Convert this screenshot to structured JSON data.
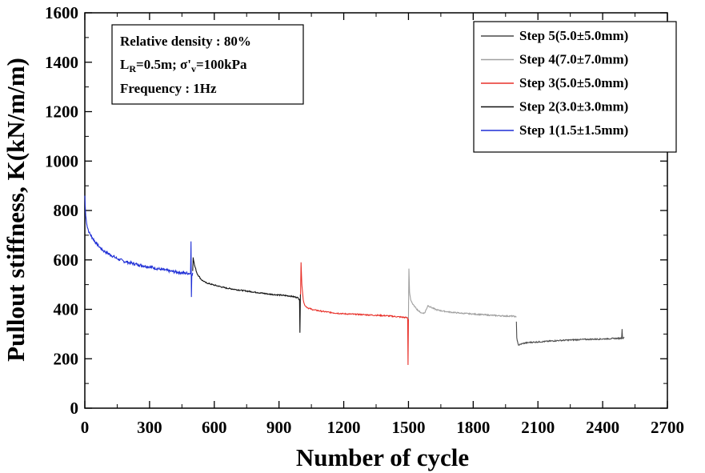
{
  "chart_data": {
    "type": "line",
    "xlabel": "Number of cycle",
    "ylabel": "Pullout stiffness, K(kN/m/m)",
    "xlim": [
      0,
      2700
    ],
    "ylim": [
      0,
      1600
    ],
    "x_ticks": [
      0,
      300,
      600,
      900,
      1200,
      1500,
      1800,
      2100,
      2400,
      2700
    ],
    "y_ticks": [
      0,
      200,
      400,
      600,
      800,
      1000,
      1200,
      1400,
      1600
    ],
    "x_tick_labels": [
      "0",
      "300",
      "600",
      "900",
      "1200",
      "1500",
      "1800",
      "2100",
      "2400",
      "2700"
    ],
    "y_tick_labels": [
      "0",
      "200",
      "400",
      "600",
      "800",
      "1000",
      "1200",
      "1400",
      "1600"
    ],
    "grid": false,
    "legend_position": "top-right",
    "info_box": {
      "line1": "Relative density : 80%",
      "line2_L": "L",
      "line2_Lsub": "R",
      "line2_mid": "=0.5m; σ'",
      "line2_vsub": "v",
      "line2_end": "=100kPa",
      "line3": "Frequency : 1Hz"
    },
    "series": [
      {
        "name": "Step 5(5.0±5.0mm)",
        "color": "#4a4a4a",
        "points": [
          [
            2000,
            350
          ],
          [
            2002,
            285
          ],
          [
            2006,
            268
          ],
          [
            2010,
            255
          ],
          [
            2030,
            262
          ],
          [
            2060,
            266
          ],
          [
            2100,
            268
          ],
          [
            2150,
            271
          ],
          [
            2200,
            274
          ],
          [
            2250,
            276
          ],
          [
            2300,
            278
          ],
          [
            2350,
            279
          ],
          [
            2400,
            280
          ],
          [
            2450,
            282
          ],
          [
            2488,
            283
          ],
          [
            2490,
            320
          ],
          [
            2492,
            283
          ],
          [
            2500,
            285
          ]
        ]
      },
      {
        "name": "Step 4(7.0±7.0mm)",
        "color": "#a0a0a0",
        "points": [
          [
            1500,
            360
          ],
          [
            1502,
            565
          ],
          [
            1505,
            470
          ],
          [
            1510,
            440
          ],
          [
            1520,
            420
          ],
          [
            1530,
            410
          ],
          [
            1545,
            395
          ],
          [
            1560,
            385
          ],
          [
            1575,
            385
          ],
          [
            1590,
            415
          ],
          [
            1605,
            408
          ],
          [
            1630,
            398
          ],
          [
            1660,
            393
          ],
          [
            1700,
            388
          ],
          [
            1750,
            384
          ],
          [
            1800,
            381
          ],
          [
            1850,
            378
          ],
          [
            1900,
            375
          ],
          [
            1950,
            373
          ],
          [
            1990,
            372
          ],
          [
            2000,
            368
          ]
        ]
      },
      {
        "name": "Step 3(5.0±5.0mm)",
        "color": "#e8312a",
        "points": [
          [
            1000,
            460
          ],
          [
            1002,
            590
          ],
          [
            1006,
            500
          ],
          [
            1012,
            440
          ],
          [
            1020,
            415
          ],
          [
            1035,
            405
          ],
          [
            1060,
            398
          ],
          [
            1100,
            392
          ],
          [
            1150,
            386
          ],
          [
            1200,
            382
          ],
          [
            1250,
            380
          ],
          [
            1300,
            378
          ],
          [
            1350,
            376
          ],
          [
            1400,
            374
          ],
          [
            1450,
            370
          ],
          [
            1496,
            366
          ],
          [
            1498,
            175
          ],
          [
            1500,
            362
          ]
        ]
      },
      {
        "name": "Step 2(3.0±3.0mm)",
        "color": "#111111",
        "points": [
          [
            500,
            555
          ],
          [
            502,
            610
          ],
          [
            508,
            580
          ],
          [
            520,
            545
          ],
          [
            540,
            520
          ],
          [
            560,
            508
          ],
          [
            600,
            498
          ],
          [
            650,
            487
          ],
          [
            700,
            480
          ],
          [
            750,
            474
          ],
          [
            800,
            468
          ],
          [
            850,
            462
          ],
          [
            900,
            458
          ],
          [
            950,
            454
          ],
          [
            985,
            448
          ],
          [
            995,
            440
          ],
          [
            997,
            305
          ],
          [
            999,
            460
          ],
          [
            1000,
            458
          ]
        ]
      },
      {
        "name": "Step 1(1.5±1.5mm)",
        "color": "#1f2fd6",
        "points": [
          [
            0,
            860
          ],
          [
            4,
            780
          ],
          [
            10,
            740
          ],
          [
            20,
            710
          ],
          [
            35,
            690
          ],
          [
            50,
            670
          ],
          [
            70,
            650
          ],
          [
            90,
            635
          ],
          [
            120,
            620
          ],
          [
            150,
            605
          ],
          [
            180,
            595
          ],
          [
            210,
            588
          ],
          [
            250,
            580
          ],
          [
            300,
            572
          ],
          [
            350,
            562
          ],
          [
            400,
            554
          ],
          [
            450,
            548
          ],
          [
            490,
            545
          ],
          [
            492,
            675
          ],
          [
            494,
            450
          ],
          [
            496,
            540
          ],
          [
            500,
            548
          ]
        ]
      }
    ]
  }
}
